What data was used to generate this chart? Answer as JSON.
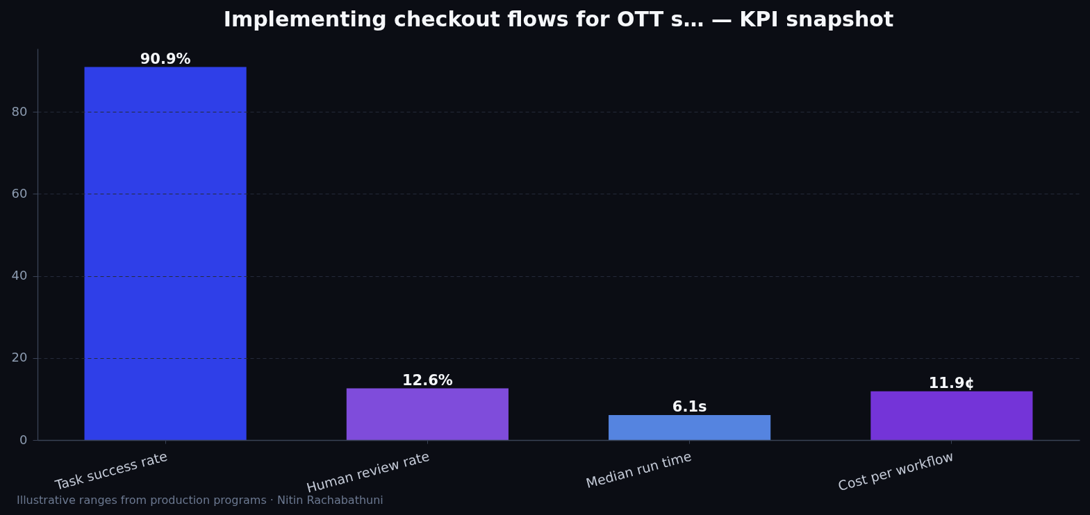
{
  "chart_data": {
    "type": "bar",
    "title": "Implementing checkout flows for OTT s… — KPI snapshot",
    "categories": [
      "Task success rate",
      "Human review rate",
      "Median run time",
      "Cost per workflow"
    ],
    "values": [
      90.9,
      12.6,
      6.1,
      11.9
    ],
    "colors": [
      "#2f3fe8",
      "#7f4cdb",
      "#5584e0",
      "#7434d8"
    ],
    "value_labels": [
      "90.9%",
      "12.6%",
      "6.1s",
      "11.9¢"
    ],
    "ylim": [
      0,
      95.4
    ],
    "yticks": [
      0,
      20,
      40,
      60,
      80
    ],
    "grid": "y",
    "annotations": [
      "Illustrative ranges from production programs · Nitin Rachabathuni"
    ]
  }
}
